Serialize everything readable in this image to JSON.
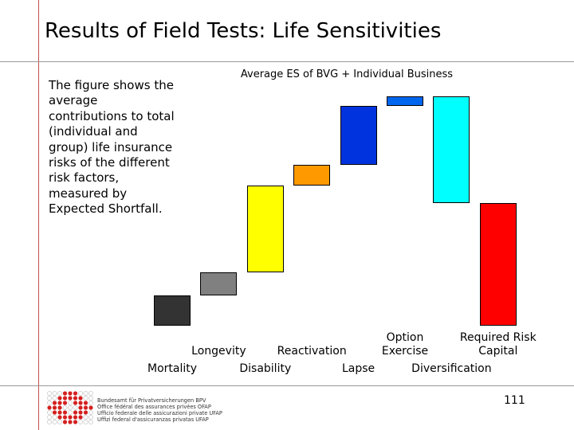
{
  "slide": {
    "title": "Results of Field Tests: Life Sensitivities",
    "description": "The figure shows the average contributions to total (individual and group) life insurance risks of the different risk factors, measured by Expected Shortfall.",
    "page_number": "111",
    "footer_lines": [
      "Bundesamt für Privatversicherungen BPV",
      "Office fédéral des assurances privées OFAP",
      "Ufficio federale delle assicurazioni private UFAP",
      "Uffizi federal d'assicuranzas privatas UFAP"
    ],
    "colors": {
      "accent_line": "#c0504d",
      "rule": "#9a9a9a",
      "logo_red": "#d42020"
    }
  },
  "chart_data": {
    "type": "bar",
    "subtype": "waterfall",
    "title": "Average ES of BVG + Individual Business",
    "xlabel": "",
    "ylabel": "",
    "ylim": [
      0,
      100
    ],
    "grid": false,
    "legend": "none",
    "categories": [
      "Mortality",
      "Longevity",
      "Disability",
      "Reactivation",
      "Lapse",
      "Option Exercise",
      "Diversification",
      "Required Risk Capital"
    ],
    "label_row": [
      "lower",
      "upper",
      "lower",
      "upper",
      "lower",
      "upper",
      "lower",
      "upper"
    ],
    "bars": [
      {
        "name": "Mortality",
        "start": 0,
        "end": 12.6,
        "color": "#333333"
      },
      {
        "name": "Longevity",
        "start": 12.6,
        "end": 22.3,
        "color": "#808080"
      },
      {
        "name": "Disability",
        "start": 22.3,
        "end": 59.0,
        "color": "#ffff00"
      },
      {
        "name": "Reactivation",
        "start": 59.0,
        "end": 67.6,
        "color": "#ff9900"
      },
      {
        "name": "Lapse",
        "start": 67.6,
        "end": 92.4,
        "color": "#0033dd"
      },
      {
        "name": "Option Exercise",
        "start": 92.4,
        "end": 96.4,
        "color": "#0066ee"
      },
      {
        "name": "Diversification",
        "start": 96.4,
        "end": 51.4,
        "color": "#00ffff"
      },
      {
        "name": "Required Risk Capital",
        "start": 51.4,
        "end": 0,
        "color": "#ff0000"
      }
    ]
  }
}
